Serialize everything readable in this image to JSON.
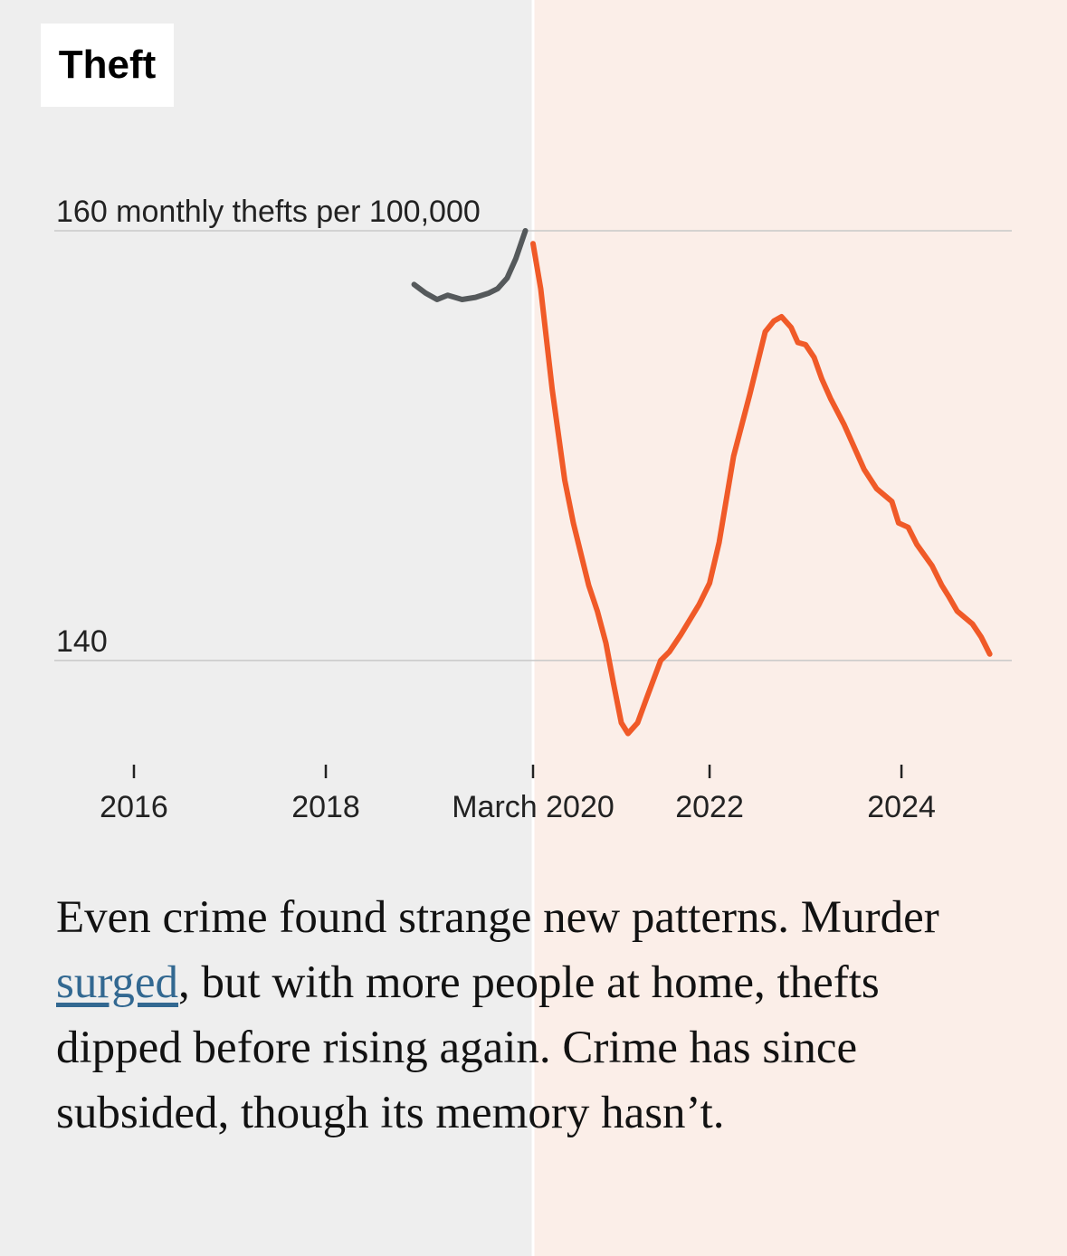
{
  "chart_data": {
    "type": "line",
    "title": "Theft",
    "xlim": [
      2015.17,
      2025.15
    ],
    "xticks": [
      2016,
      2018,
      {
        "value": 2020.16,
        "label": "March 2020"
      },
      2022,
      2024
    ],
    "ylim": [
      136.5,
      160
    ],
    "yticks": [
      {
        "value": 140,
        "label": "140"
      },
      {
        "value": 160,
        "label": "160 monthly thefts per 100,000"
      }
    ],
    "grid": true,
    "shade_split_tick": 2,
    "series": [
      {
        "name": null,
        "color": "#55595b",
        "x": [
          2018.92,
          2019.04,
          2019.16,
          2019.27,
          2019.42,
          2019.56,
          2019.7,
          2019.79,
          2019.89,
          2019.98,
          2020.08
        ],
        "values": [
          157.5,
          157.1,
          156.8,
          157.0,
          156.8,
          156.9,
          157.1,
          157.3,
          157.8,
          158.7,
          160.0
        ]
      },
      {
        "name": null,
        "color": "#f05a28",
        "x": [
          2020.16,
          2020.24,
          2020.36,
          2020.49,
          2020.58,
          2020.74,
          2020.83,
          2020.92,
          2021.0,
          2021.08,
          2021.15,
          2021.25,
          2021.34,
          2021.49,
          2021.58,
          2021.7,
          2021.89,
          2022.0,
          2022.1,
          2022.25,
          2022.42,
          2022.58,
          2022.67,
          2022.75,
          2022.85,
          2022.92,
          2023.0,
          2023.09,
          2023.17,
          2023.26,
          2023.4,
          2023.49,
          2023.61,
          2023.74,
          2023.9,
          2023.97,
          2024.07,
          2024.16,
          2024.32,
          2024.42,
          2024.49,
          2024.58,
          2024.74,
          2024.83,
          2024.92
        ],
        "values": [
          159.4,
          157.3,
          152.6,
          148.4,
          146.4,
          143.5,
          142.3,
          140.8,
          138.9,
          137.1,
          136.6,
          137.1,
          138.2,
          140.0,
          140.4,
          141.2,
          142.6,
          143.6,
          145.5,
          149.5,
          152.4,
          155.3,
          155.8,
          156.0,
          155.5,
          154.8,
          154.7,
          154.1,
          153.1,
          152.2,
          151.0,
          150.1,
          148.9,
          148.0,
          147.4,
          146.4,
          146.2,
          145.4,
          144.4,
          143.5,
          143.0,
          142.3,
          141.7,
          141.1,
          140.3
        ]
      }
    ]
  },
  "caption": {
    "before": "Even crime found strange new patterns. Murder ",
    "link": "surged",
    "after": ", but with more people at home, thefts dipped before rising again. Crime has since subsided, though its memory hasn’t."
  }
}
